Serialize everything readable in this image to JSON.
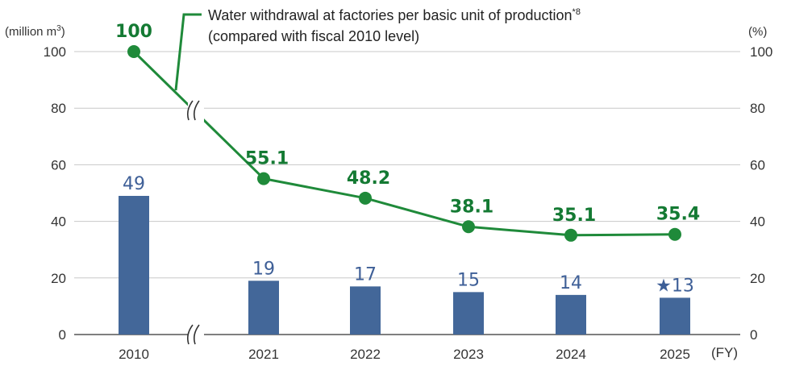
{
  "chart_data": {
    "type": "bar",
    "categories": [
      "2010",
      "2021",
      "2022",
      "2023",
      "2024",
      "2025"
    ],
    "series": [
      {
        "type": "bar",
        "axis": "left",
        "values": [
          49,
          19,
          17,
          15,
          14,
          13
        ],
        "labels": [
          "49",
          "19",
          "17",
          "15",
          "14",
          "★13"
        ],
        "color": "#436799"
      },
      {
        "name": "Water withdrawal at factories per basic unit of production",
        "name_sup": "*8",
        "name_line2": "(compared with fiscal 2010 level)",
        "type": "line",
        "axis": "right",
        "values": [
          100,
          55.1,
          48.2,
          38.1,
          35.1,
          35.4
        ],
        "labels": [
          "100",
          "55.1",
          "48.2",
          "38.1",
          "35.1",
          "35.4"
        ],
        "color": "#1f8a3a"
      }
    ],
    "y_left": {
      "label": "(million m",
      "label_sup": "3",
      "label_close": ")",
      "ticks": [
        0,
        20,
        40,
        60,
        80,
        100
      ],
      "ylim": [
        0,
        100
      ]
    },
    "y_right": {
      "label": "(%)",
      "ticks": [
        0,
        20,
        40,
        60,
        80,
        100
      ],
      "ylim": [
        0,
        100
      ]
    },
    "x_unit": "(FY)",
    "axis_break_after": "2010",
    "grid": true,
    "legend": "top"
  }
}
